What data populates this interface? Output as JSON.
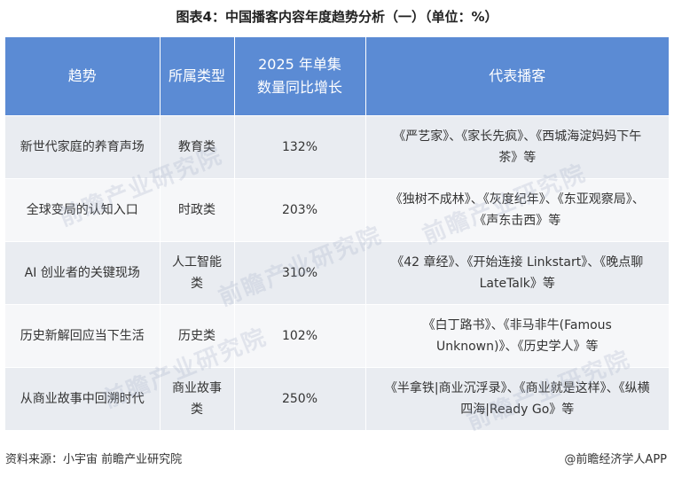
{
  "title": "图表4：中国播客内容年度趋势分析（一）（单位：%）",
  "table": {
    "headers": {
      "trend": "趋势",
      "type": "所属类型",
      "growth_line1": "2025 年单集",
      "growth_line2": "数量同比增长",
      "representative": "代表播客"
    },
    "rows": [
      {
        "trend": "新世代家庭的养育声场",
        "type": "教育类",
        "growth": "132%",
        "rep_line1": "《严艺家》、《家长先疯》、《西城海淀妈妈下午",
        "rep_line2": "茶》等"
      },
      {
        "trend": "全球变局的认知入口",
        "type": "时政类",
        "growth": "203%",
        "rep_line1": "《独树不成林》、《灰度纪年》、《东亚观察局》、",
        "rep_line2": "《声东击西》等"
      },
      {
        "trend": "AI 创业者的关键现场",
        "type": "人工智能类",
        "growth": "310%",
        "rep_line1": "《42 章经》、《开始连接 Linkstart》、《晚点聊",
        "rep_line2": "LateTalk》等"
      },
      {
        "trend": "历史新解回应当下生活",
        "type": "历史类",
        "growth": "102%",
        "rep_line1": "《白丁路书》、《非马非牛(Famous",
        "rep_line2": "Unknown)》、《历史学人》等"
      },
      {
        "trend": "从商业故事中回溯时代",
        "type": "商业故事类",
        "growth": "250%",
        "rep_line1": "《半拿铁|商业沉浮录》、《商业就是这样》、《纵横",
        "rep_line2": "四海|Ready Go》等"
      }
    ]
  },
  "watermark_text": "前瞻产业研究院",
  "footer": {
    "source": "资料来源：小宇宙  前瞻产业研究院",
    "brand": "@前瞻经济学人APP"
  }
}
